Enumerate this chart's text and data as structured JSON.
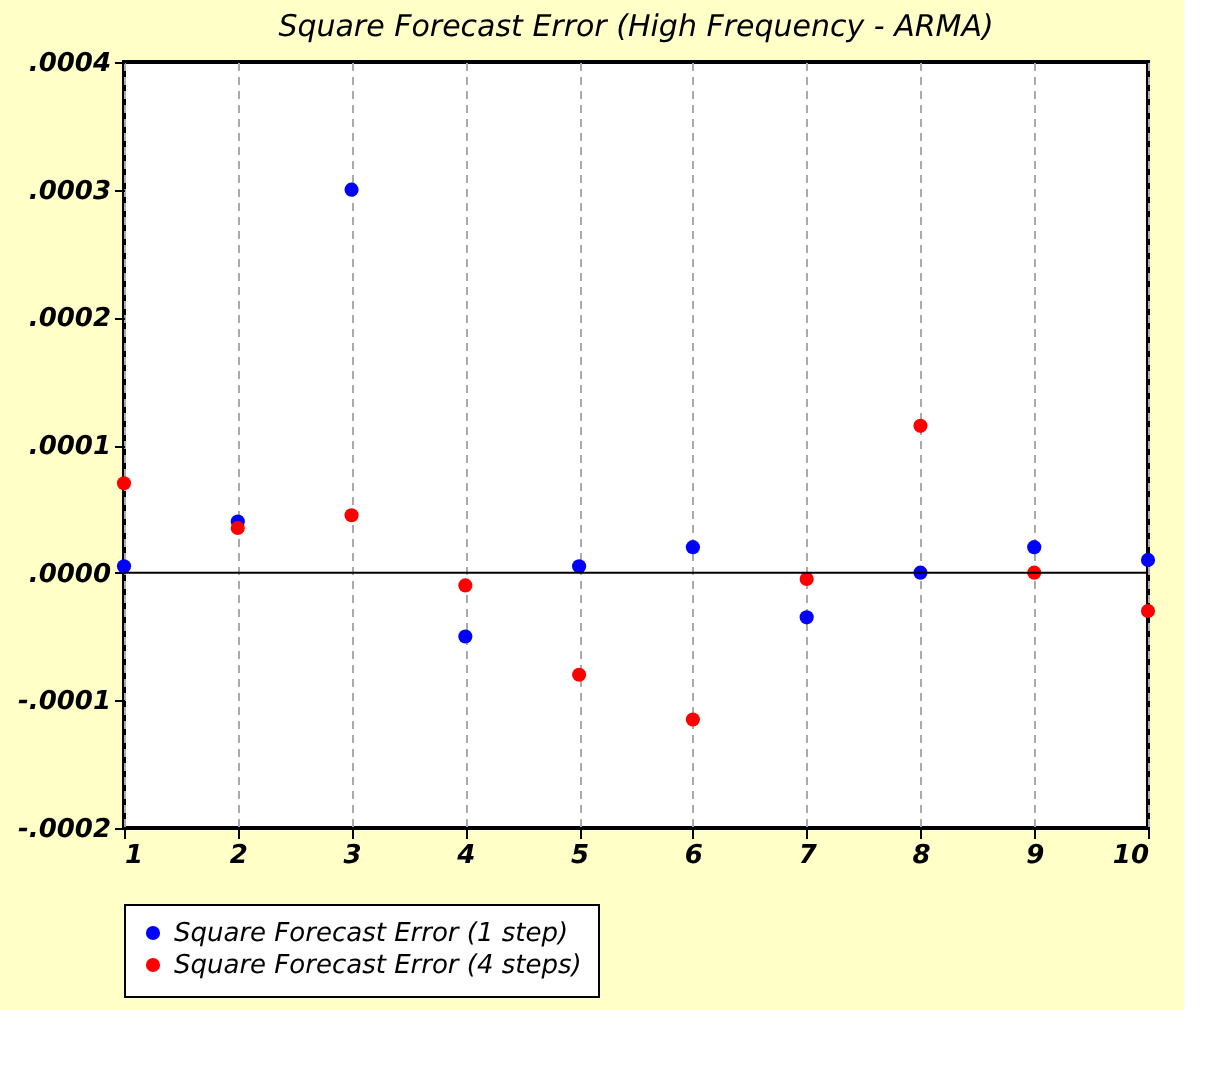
{
  "chart_data": {
    "type": "scatter",
    "title": "Square Forecast Error (High Frequency - ARMA)",
    "x": [
      1,
      2,
      3,
      4,
      5,
      6,
      7,
      8,
      9,
      10
    ],
    "series": [
      {
        "name": "Square Forecast Error (1 step)",
        "color": "#0000ff",
        "values": [
          5e-06,
          4e-05,
          0.0003,
          -5e-05,
          5e-06,
          2e-05,
          -3.5e-05,
          0.0,
          2e-05,
          1e-05
        ]
      },
      {
        "name": "Square Forecast Error (4 steps)",
        "color": "#ff0000",
        "values": [
          7e-05,
          3.5e-05,
          4.5e-05,
          -1e-05,
          -8e-05,
          -0.000115,
          -5e-06,
          0.000115,
          0.0,
          -3e-05
        ]
      }
    ],
    "xlim": [
      1,
      10
    ],
    "xticks": [
      1,
      2,
      3,
      4,
      5,
      6,
      7,
      8,
      9,
      10
    ],
    "ylim": [
      -0.0002,
      0.0004
    ],
    "yticks": [
      {
        "value": -0.0002,
        "label": "-.0002"
      },
      {
        "value": -0.0001,
        "label": "-.0001"
      },
      {
        "value": 0,
        "label": ".0000"
      },
      {
        "value": 0.0001,
        "label": ".0001"
      },
      {
        "value": 0.0002,
        "label": ".0002"
      },
      {
        "value": 0.0003,
        "label": ".0003"
      },
      {
        "value": 0.0004,
        "label": ".0004"
      }
    ],
    "ref_lines": [
      {
        "axis": "y",
        "value": 0,
        "color": "#000000"
      }
    ],
    "grid": "x",
    "legend": "bottom",
    "marker": "circle"
  }
}
